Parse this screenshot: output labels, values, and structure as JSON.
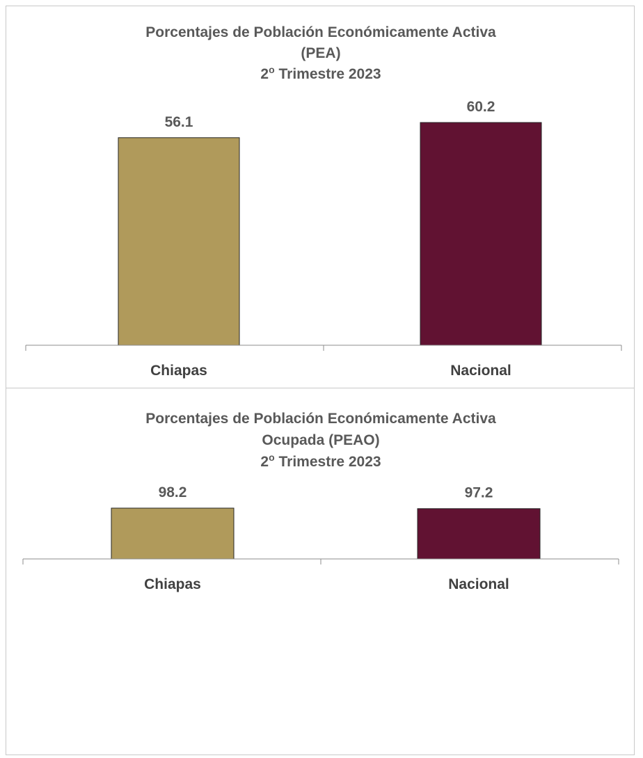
{
  "chart_data": [
    {
      "type": "bar",
      "title_lines": [
        "Porcentajes de Población Económicamente Activa",
        "(PEA)",
        "2o Trimestre 2023"
      ],
      "categories": [
        "Chiapas",
        "Nacional"
      ],
      "values": [
        56.1,
        60.2
      ],
      "value_labels": [
        "56.1",
        "60.2"
      ],
      "colors": [
        "#b09a5b",
        "#611232"
      ],
      "ylim": [
        0,
        66
      ]
    },
    {
      "type": "bar",
      "title_lines": [
        "Porcentajes de Población Económicamente Activa",
        "Ocupada (PEAO)",
        "2o Trimestre 2023"
      ],
      "categories": [
        "Chiapas",
        "Nacional"
      ],
      "values": [
        98.2,
        97.2
      ],
      "value_labels": [
        "98.2",
        "97.2"
      ],
      "colors": [
        "#b09a5b",
        "#611232"
      ],
      "ylim": [
        0,
        100
      ]
    }
  ]
}
